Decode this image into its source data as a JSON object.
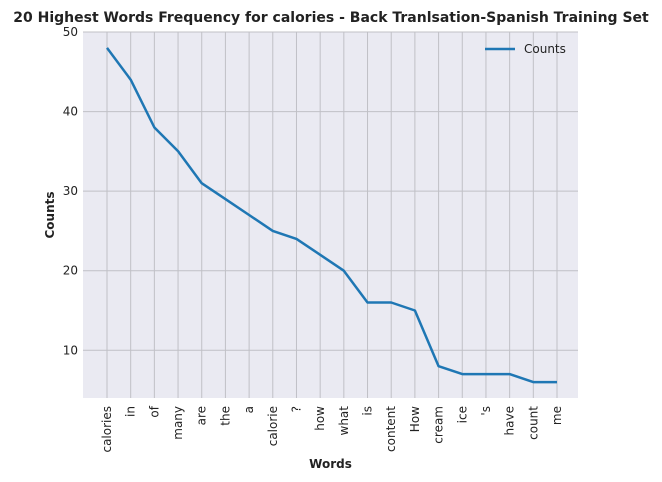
{
  "chart_data": {
    "type": "line",
    "title": "20 Highest Words Frequency for calories - Back Tranlsation-Spanish Training Set",
    "xlabel": "Words",
    "ylabel": "Counts",
    "categories": [
      "calories",
      "in",
      "of",
      "many",
      "are",
      "the",
      "a",
      "calorie",
      "?",
      "how",
      "what",
      "is",
      "content",
      "How",
      "cream",
      "ice",
      "'s",
      "have",
      "count",
      "me"
    ],
    "series": [
      {
        "name": "Counts",
        "values": [
          48,
          44,
          38,
          35,
          31,
          29,
          27,
          25,
          24,
          22,
          20,
          16,
          16,
          15,
          8,
          7,
          7,
          7,
          6,
          6
        ]
      }
    ],
    "yticks": [
      10,
      20,
      30,
      40,
      50
    ],
    "ylim": [
      4,
      50
    ],
    "grid": true,
    "legend_position": "top-right",
    "colors": {
      "line": "#1f77b4",
      "plot_bg": "#eaeaf2",
      "grid": "#c0c0c6"
    }
  }
}
